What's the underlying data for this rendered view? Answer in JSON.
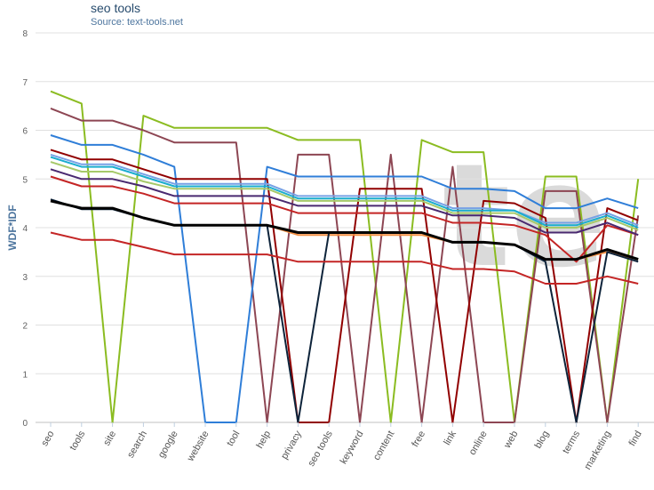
{
  "chart_data": {
    "type": "line",
    "title": "seo tools",
    "subtitle": "Source: text-tools.net",
    "ylabel": "WDF*IDF",
    "ylim": [
      0,
      8
    ],
    "yticks": [
      0,
      1,
      2,
      3,
      4,
      5,
      6,
      7,
      8
    ],
    "categories": [
      "seo",
      "tools",
      "site",
      "search",
      "google",
      "website",
      "tool",
      "help",
      "privacy",
      "seo tools",
      "keyword",
      "content",
      "free",
      "link",
      "online",
      "web",
      "blog",
      "terms",
      "marketing",
      "find"
    ],
    "watermark": "te",
    "grid": true,
    "legend": "none",
    "series": [
      {
        "color": "#8bbc21",
        "values": [
          6.8,
          6.55,
          0,
          6.3,
          6.05,
          6.05,
          6.05,
          6.05,
          5.8,
          5.8,
          5.8,
          0,
          5.8,
          5.55,
          5.55,
          0,
          5.05,
          5.05,
          0,
          5.0
        ]
      },
      {
        "color": "#8d4653",
        "values": [
          6.45,
          6.2,
          6.2,
          6.0,
          5.75,
          5.75,
          5.75,
          0,
          5.5,
          5.5,
          0,
          5.5,
          0,
          5.25,
          0,
          0,
          4.75,
          4.75,
          0,
          4.25
        ]
      },
      {
        "color": "#2f7ed8",
        "values": [
          5.9,
          5.7,
          5.7,
          5.5,
          5.25,
          0,
          0,
          5.25,
          5.05,
          5.05,
          5.05,
          5.05,
          5.05,
          4.8,
          4.8,
          4.75,
          4.4,
          4.4,
          4.6,
          4.4
        ]
      },
      {
        "color": "#910000",
        "values": [
          5.6,
          5.4,
          5.4,
          5.2,
          5.0,
          5.0,
          5.0,
          5.0,
          0,
          0,
          4.8,
          4.8,
          4.8,
          0,
          4.55,
          4.5,
          4.2,
          0,
          4.4,
          4.15
        ]
      },
      {
        "color": "#77a1e5",
        "values": [
          5.5,
          5.3,
          5.3,
          5.1,
          4.9,
          4.9,
          4.9,
          4.9,
          4.65,
          4.65,
          4.65,
          4.65,
          4.65,
          4.4,
          4.4,
          4.35,
          4.1,
          4.1,
          4.3,
          4.05
        ]
      },
      {
        "color": "#c42525",
        "values": [
          5.05,
          4.85,
          4.85,
          4.7,
          4.5,
          4.5,
          4.5,
          4.5,
          4.3,
          4.3,
          4.3,
          4.3,
          4.3,
          4.1,
          4.1,
          4.05,
          3.85,
          3.3,
          4.05,
          3.85
        ]
      },
      {
        "color": "#1aadce",
        "values": [
          5.45,
          5.25,
          5.25,
          5.05,
          4.85,
          4.85,
          4.85,
          4.85,
          4.6,
          4.6,
          4.6,
          4.6,
          4.6,
          4.35,
          4.35,
          4.35,
          4.05,
          4.05,
          4.25,
          4.0
        ]
      },
      {
        "color": "#a6c96a",
        "values": [
          5.35,
          5.15,
          5.15,
          4.95,
          4.8,
          4.8,
          4.8,
          4.8,
          4.55,
          4.55,
          4.55,
          4.55,
          4.55,
          4.3,
          4.3,
          4.3,
          4.0,
          4.0,
          4.2,
          3.95
        ]
      },
      {
        "color": "#492970",
        "values": [
          5.2,
          5.0,
          5.0,
          4.85,
          4.65,
          4.65,
          4.65,
          4.65,
          4.45,
          4.45,
          4.45,
          4.45,
          4.45,
          4.25,
          4.25,
          4.2,
          3.9,
          3.9,
          4.1,
          3.85
        ]
      },
      {
        "color": "#f28f43",
        "values": [
          4.55,
          4.4,
          4.4,
          4.2,
          4.05,
          4.05,
          4.05,
          4.05,
          3.85,
          3.85,
          3.85,
          3.85,
          3.85,
          3.7,
          3.7,
          3.65,
          3.35,
          3.35,
          3.5,
          3.35
        ]
      },
      {
        "color": "#0d233a",
        "values": [
          4.58,
          4.38,
          4.38,
          4.2,
          4.05,
          4.05,
          4.05,
          4.05,
          0,
          3.9,
          3.9,
          3.9,
          3.9,
          3.7,
          3.7,
          3.65,
          3.3,
          0,
          3.5,
          3.3
        ]
      },
      {
        "color": "#c42525",
        "values": [
          3.9,
          3.75,
          3.75,
          3.6,
          3.45,
          3.45,
          3.45,
          3.45,
          3.3,
          3.3,
          3.3,
          3.3,
          3.3,
          3.15,
          3.15,
          3.1,
          2.85,
          2.85,
          3.0,
          2.85
        ]
      },
      {
        "color": "#000000",
        "values": [
          4.55,
          4.4,
          4.4,
          4.2,
          4.05,
          4.05,
          4.05,
          4.05,
          3.9,
          3.9,
          3.9,
          3.9,
          3.9,
          3.7,
          3.7,
          3.65,
          3.35,
          3.35,
          3.55,
          3.35
        ]
      }
    ]
  }
}
